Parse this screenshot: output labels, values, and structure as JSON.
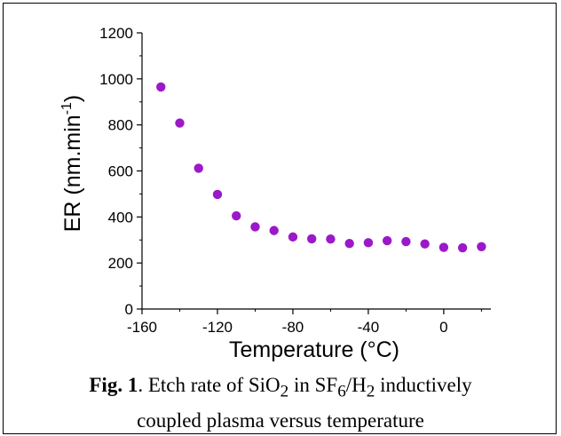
{
  "chart_data": {
    "type": "scatter",
    "title": "",
    "xlabel": "Temperature (°C)",
    "ylabel": {
      "prefix": "ER (nm.min",
      "superscript": "-1",
      "suffix": ")"
    },
    "xlim": [
      -160,
      25
    ],
    "ylim": [
      0,
      1200
    ],
    "xticks": [
      -160,
      -120,
      -80,
      -40,
      0
    ],
    "yticks": [
      0,
      200,
      400,
      600,
      800,
      1000,
      1200
    ],
    "marker_color": "#9b19c8",
    "grid": false,
    "legend": "none",
    "series": [
      {
        "x": [
          -150,
          -140,
          -130,
          -120,
          -110,
          -100,
          -90,
          -80,
          -70,
          -60,
          -50,
          -40,
          -30,
          -20,
          -10,
          0,
          10,
          20
        ],
        "y": [
          965,
          808,
          612,
          498,
          405,
          357,
          341,
          313,
          305,
          304,
          285,
          288,
          297,
          293,
          283,
          268,
          266,
          271
        ]
      }
    ]
  },
  "caption": {
    "label": "Fig. 1",
    "line1_a": ". Etch rate of SiO",
    "sub_2a": "2",
    "line1_b": " in SF",
    "sub_6": "6",
    "line1_c": "/H",
    "sub_2b": "2",
    "line1_d": " inductively",
    "line2": "coupled plasma versus temperature"
  }
}
